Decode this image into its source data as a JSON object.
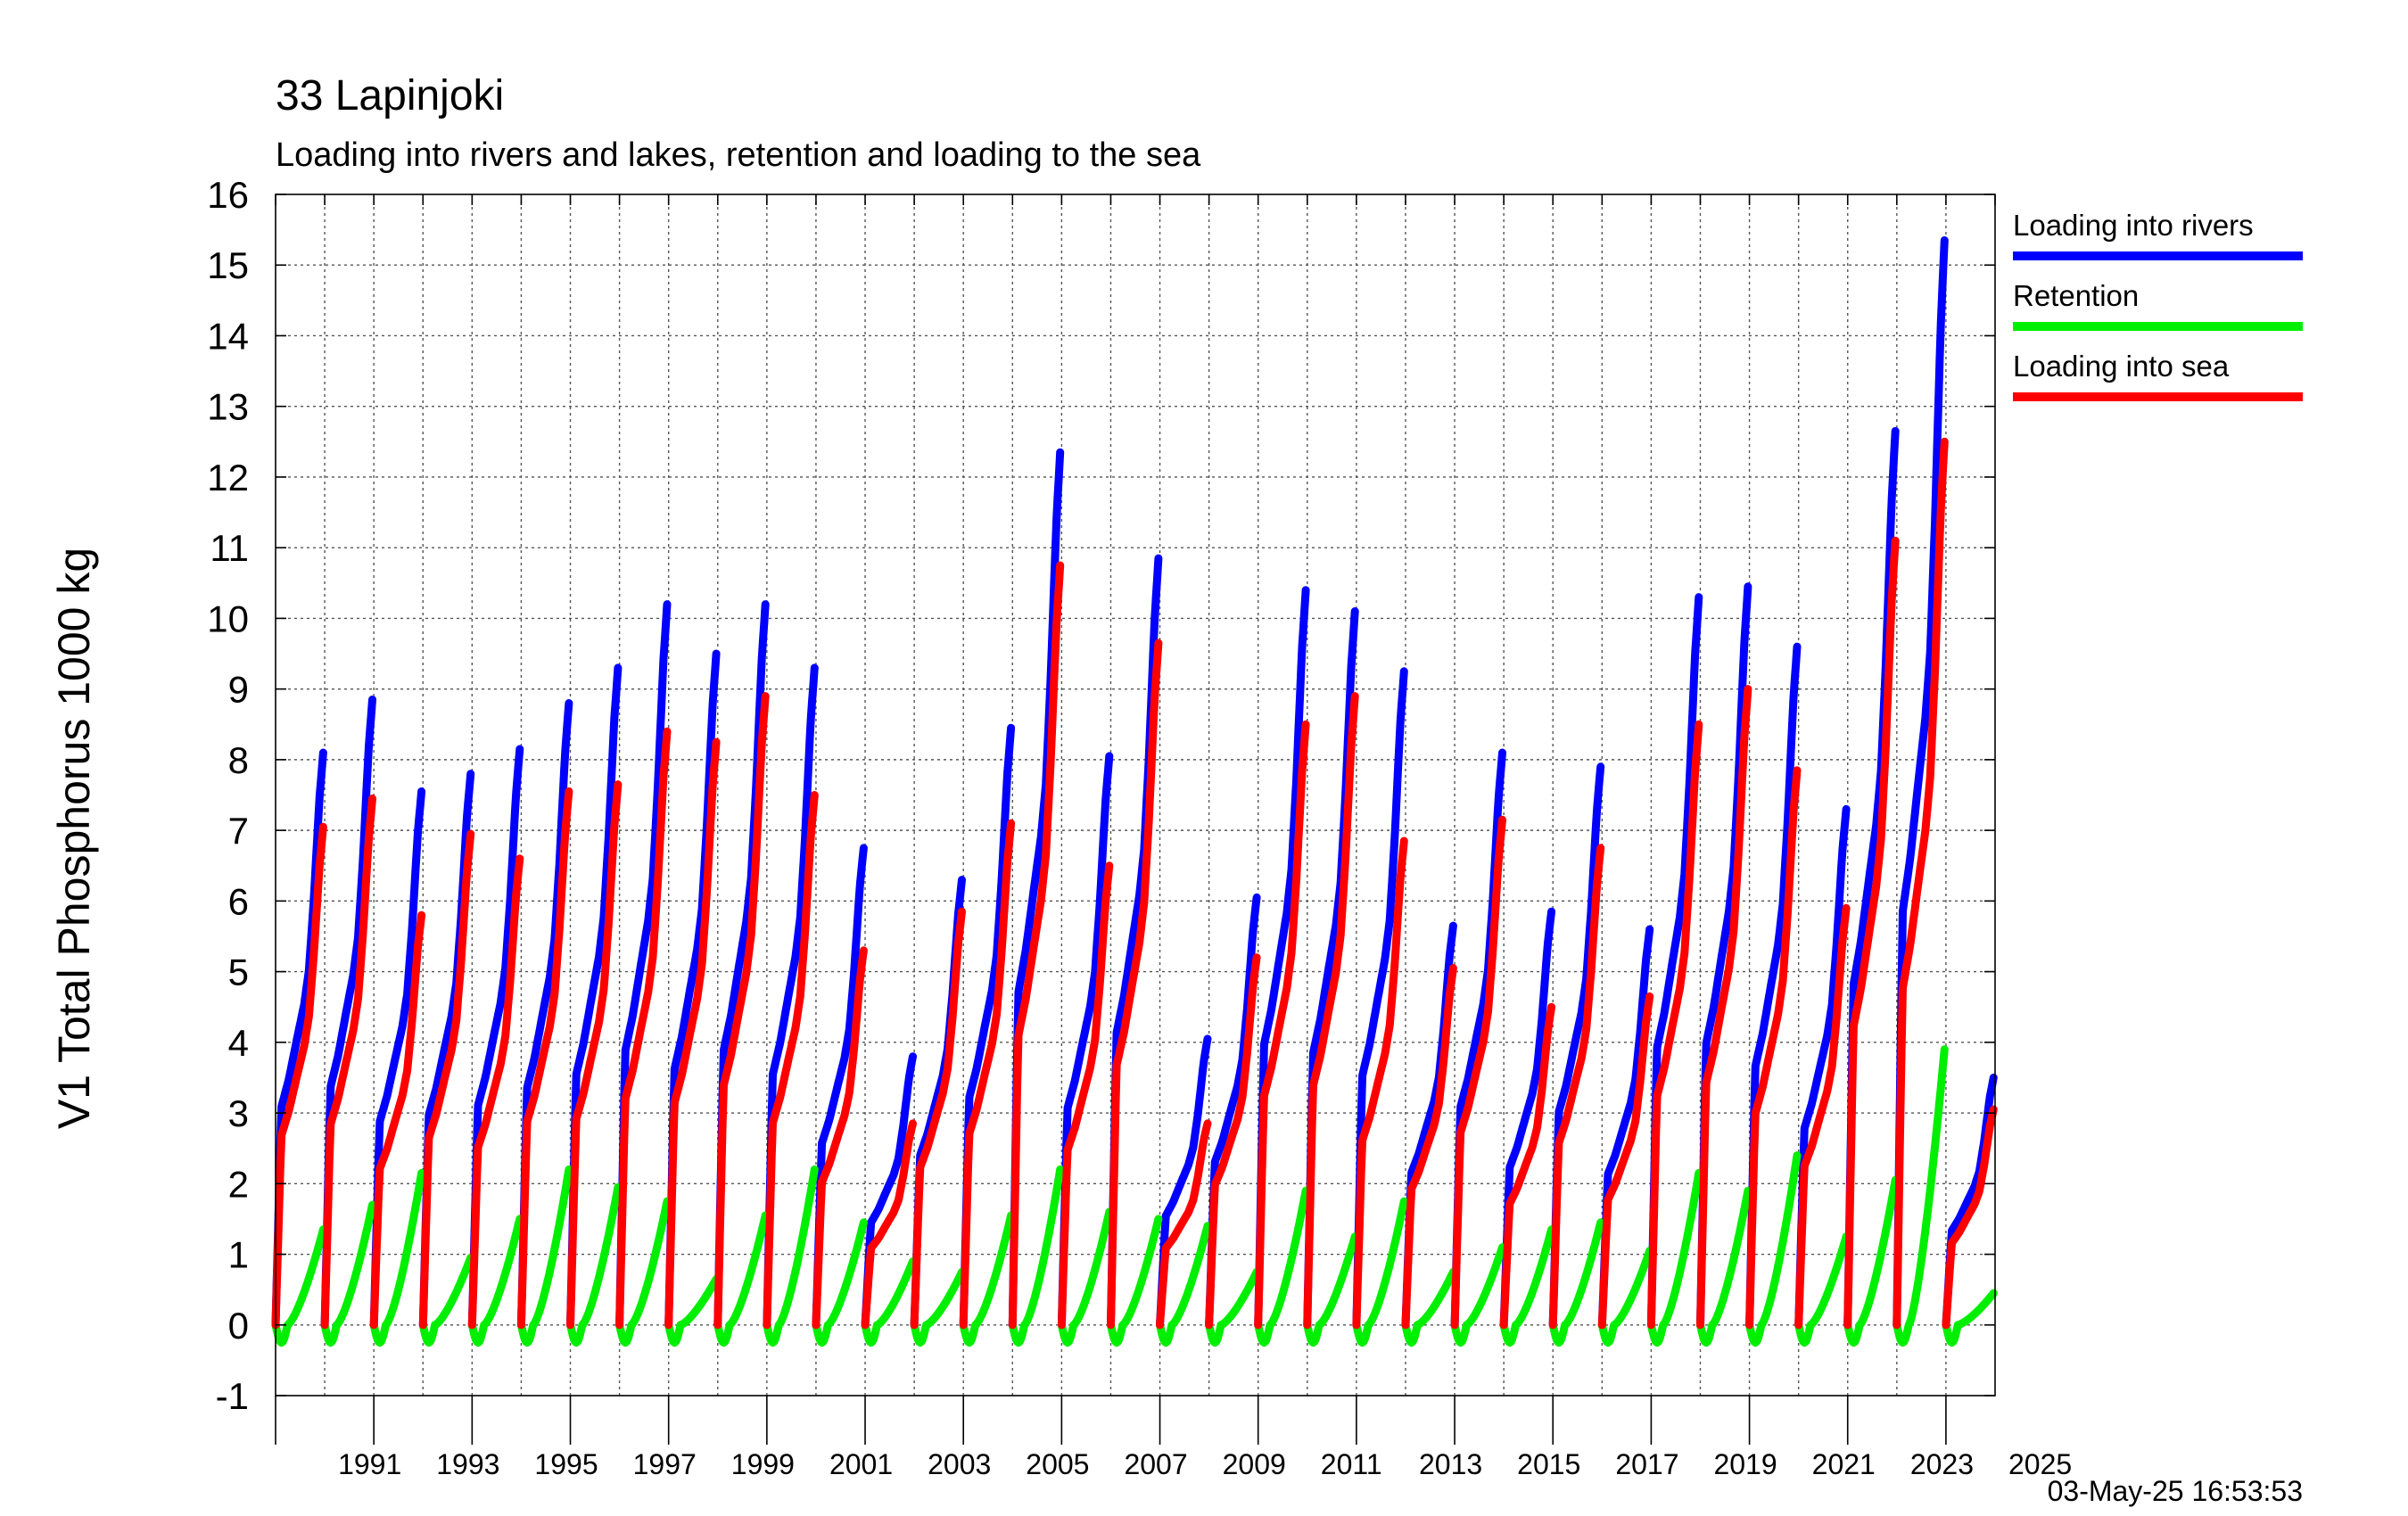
{
  "chart_data": {
    "type": "line",
    "title": "33 Lapinjoki",
    "subtitle": "Loading into rivers and lakes, retention and loading to the sea",
    "ylabel": "V1 Total Phosphorus 1000 kg",
    "xlabel": "",
    "ylim": [
      -1,
      16
    ],
    "y_ticks": [
      "-1",
      "0",
      "1",
      "2",
      "3",
      "4",
      "5",
      "6",
      "7",
      "8",
      "9",
      "10",
      "11",
      "12",
      "13",
      "14",
      "15",
      "16"
    ],
    "xlim": [
      1990,
      2025
    ],
    "x_tick_labels": [
      "1991",
      "1993",
      "1995",
      "1997",
      "1999",
      "2001",
      "2003",
      "2005",
      "2007",
      "2009",
      "2011",
      "2013",
      "2015",
      "2017",
      "2019",
      "2021",
      "2023",
      "2025"
    ],
    "grid": true,
    "legend_position": "top-right, outside plot",
    "timestamp": "03-May-25 16:53:53",
    "series": [
      {
        "name": "Loading into rivers",
        "color": "#0000ff",
        "annual_end_values": [
          8.1,
          8.85,
          7.55,
          7.8,
          8.15,
          8.8,
          9.3,
          10.2,
          9.5,
          10.2,
          9.3,
          6.75,
          3.8,
          6.3,
          8.45,
          12.35,
          8.05,
          10.85,
          4.05,
          6.05,
          10.4,
          10.1,
          9.25,
          5.65,
          8.1,
          5.85,
          7.9,
          5.6,
          10.3,
          10.45,
          9.6,
          7.3,
          12.65,
          15.35,
          3.5
        ]
      },
      {
        "name": "Retention",
        "color": "#00ee00",
        "annual_end_values": [
          1.35,
          1.7,
          2.15,
          0.95,
          1.5,
          2.2,
          1.95,
          1.75,
          0.65,
          1.55,
          2.2,
          1.45,
          0.9,
          0.75,
          1.55,
          2.2,
          1.6,
          1.5,
          1.4,
          0.75,
          1.9,
          1.25,
          1.75,
          0.75,
          1.1,
          1.35,
          1.45,
          1.05,
          2.15,
          1.9,
          2.4,
          1.25,
          2.05,
          3.9,
          0.45
        ]
      },
      {
        "name": "Loading into sea",
        "color": "#ff0000",
        "annual_end_values": [
          7.05,
          7.45,
          5.8,
          6.95,
          6.6,
          7.55,
          7.65,
          8.4,
          8.25,
          8.9,
          7.5,
          5.3,
          2.85,
          5.85,
          7.1,
          10.75,
          6.5,
          9.65,
          2.85,
          5.2,
          8.5,
          8.9,
          6.85,
          5.05,
          7.15,
          4.5,
          6.75,
          4.65,
          8.5,
          9.0,
          7.85,
          5.9,
          11.1,
          12.5,
          3.05
        ]
      }
    ]
  }
}
